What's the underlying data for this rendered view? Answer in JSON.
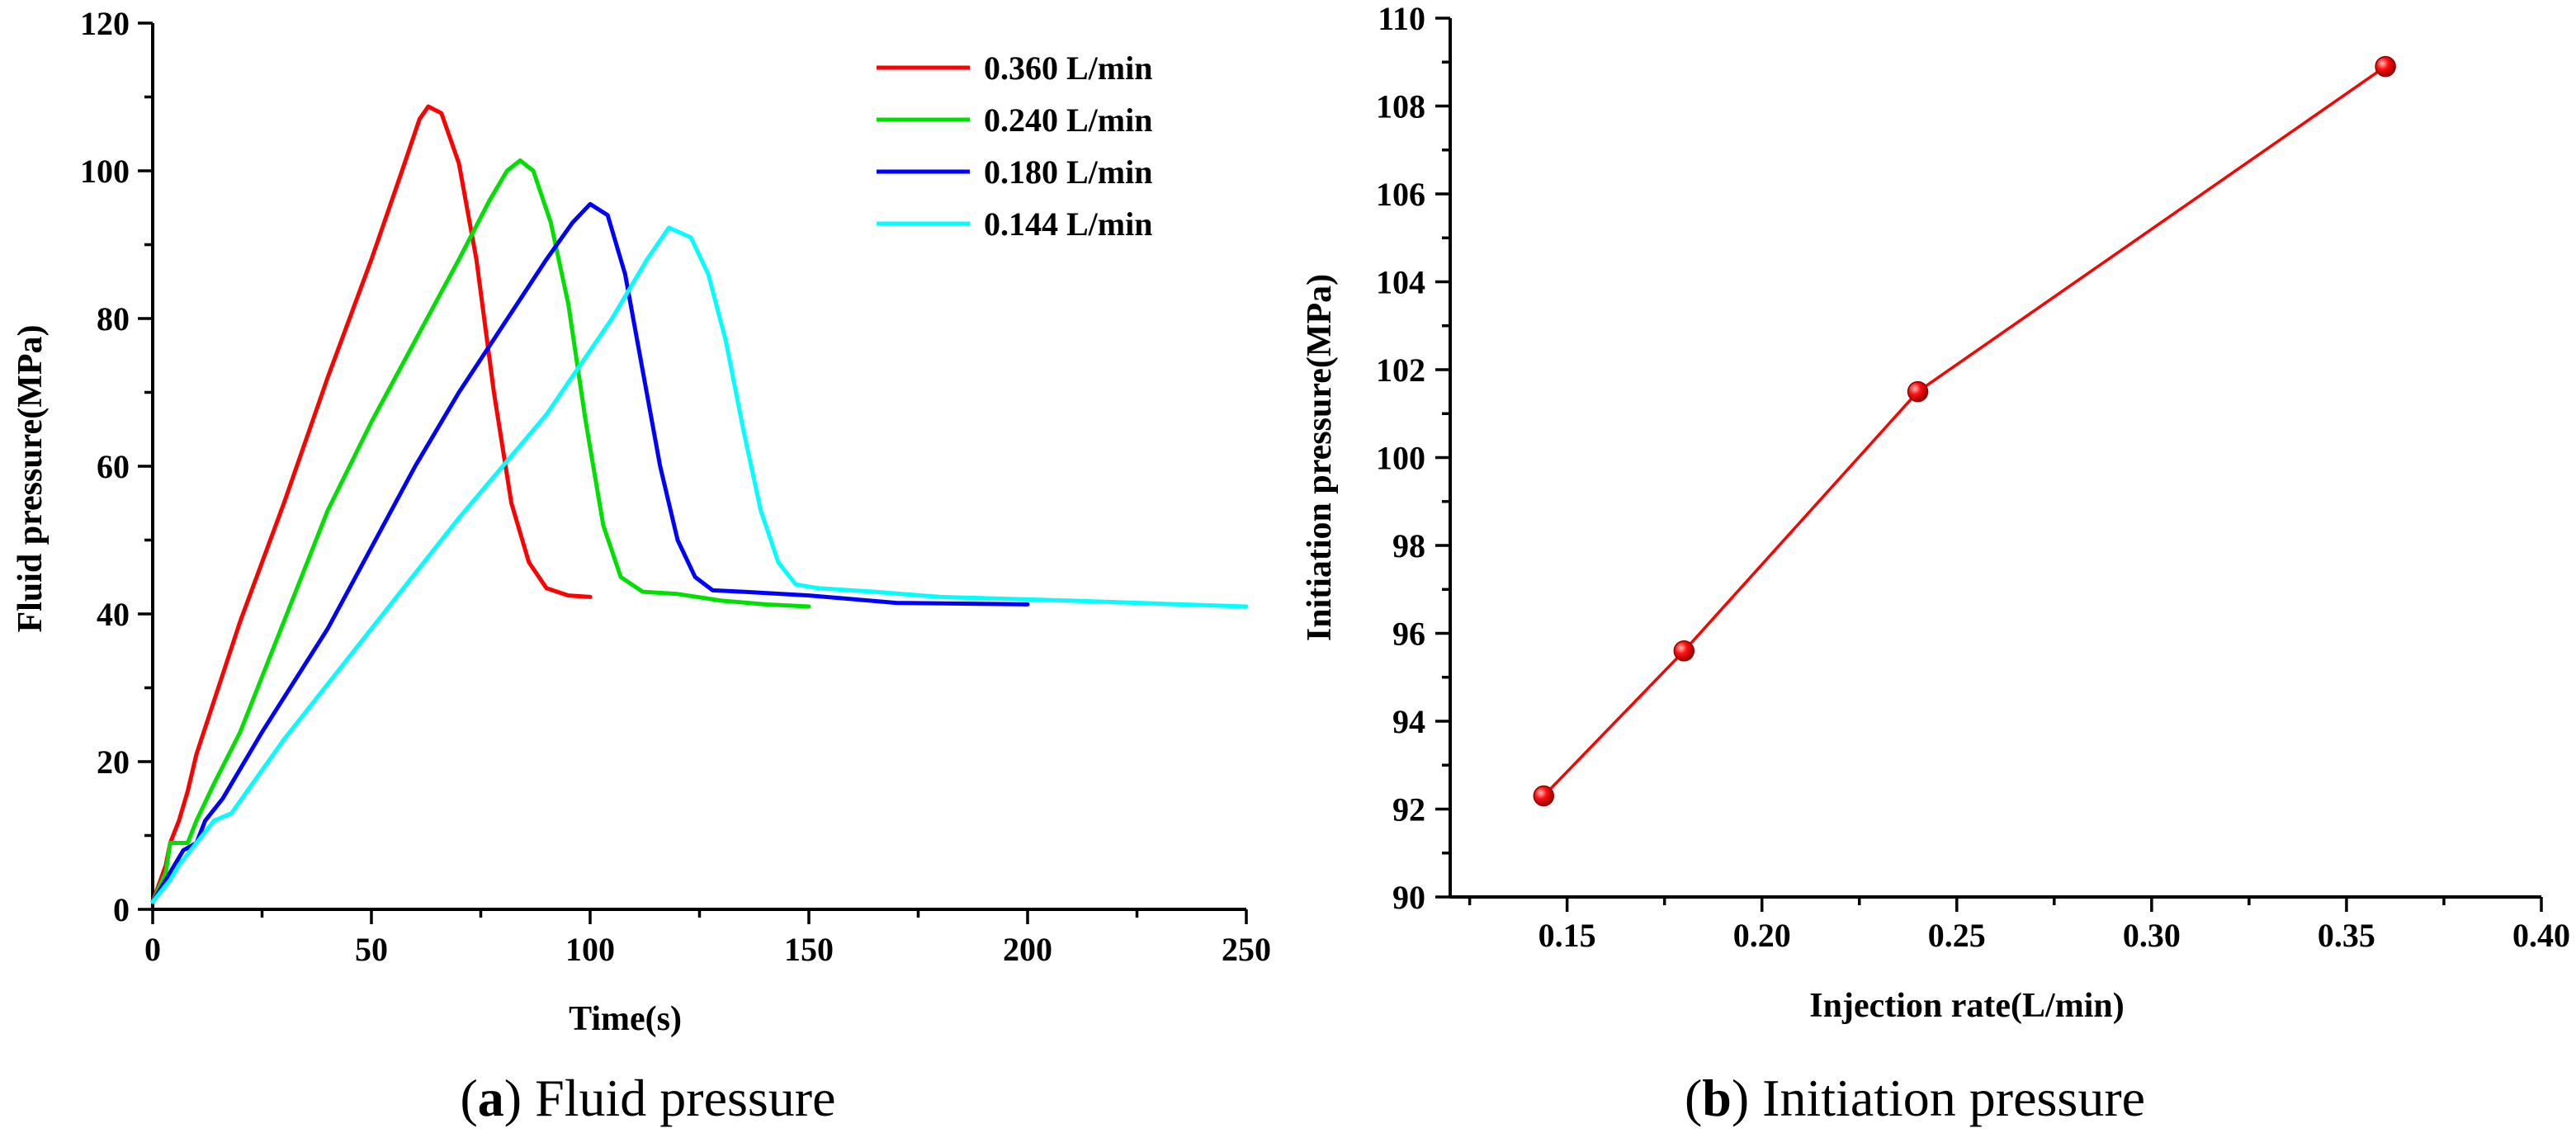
{
  "chart_data": [
    {
      "type": "line",
      "xlabel": "Time(s)",
      "ylabel": "Fluid pressure(MPa)",
      "xlim": [
        0,
        250
      ],
      "ylim": [
        0,
        120
      ],
      "xticks": [
        0,
        50,
        100,
        150,
        200,
        250
      ],
      "yticks": [
        0,
        20,
        40,
        60,
        80,
        100,
        120
      ],
      "legend_position": "top-right",
      "caption_letter": "a",
      "caption_text": " Fluid pressure",
      "series": [
        {
          "name": "0.360 L/min",
          "color": "#ff0000",
          "points": [
            [
              0,
              1
            ],
            [
              3,
              6
            ],
            [
              4,
              9
            ],
            [
              6,
              12
            ],
            [
              8,
              16
            ],
            [
              10,
              21
            ],
            [
              15,
              30
            ],
            [
              20,
              39
            ],
            [
              30,
              55
            ],
            [
              40,
              72
            ],
            [
              50,
              88
            ],
            [
              57,
              100
            ],
            [
              61,
              107
            ],
            [
              63,
              108.7
            ],
            [
              66,
              107.8
            ],
            [
              70,
              101
            ],
            [
              74,
              88
            ],
            [
              78,
              70
            ],
            [
              82,
              55
            ],
            [
              86,
              47
            ],
            [
              90,
              43.5
            ],
            [
              95,
              42.5
            ],
            [
              100,
              42.3
            ]
          ]
        },
        {
          "name": "0.240 L/min",
          "color": "#00e000",
          "points": [
            [
              0,
              1
            ],
            [
              3,
              5
            ],
            [
              4,
              9
            ],
            [
              8,
              9
            ],
            [
              10,
              12
            ],
            [
              14,
              17
            ],
            [
              20,
              24
            ],
            [
              30,
              39
            ],
            [
              40,
              54
            ],
            [
              50,
              66
            ],
            [
              60,
              77
            ],
            [
              70,
              88
            ],
            [
              77,
              96
            ],
            [
              81,
              100
            ],
            [
              84,
              101.4
            ],
            [
              87,
              100
            ],
            [
              91,
              93
            ],
            [
              95,
              82
            ],
            [
              99,
              66
            ],
            [
              103,
              52
            ],
            [
              107,
              45
            ],
            [
              112,
              43
            ],
            [
              120,
              42.7
            ],
            [
              130,
              41.8
            ],
            [
              140,
              41.3
            ],
            [
              150,
              41
            ]
          ]
        },
        {
          "name": "0.180 L/min",
          "color": "#0000ff",
          "points": [
            [
              0,
              1
            ],
            [
              3,
              4
            ],
            [
              5,
              6
            ],
            [
              7,
              8
            ],
            [
              10,
              9
            ],
            [
              12,
              12
            ],
            [
              16,
              15
            ],
            [
              25,
              24
            ],
            [
              40,
              38
            ],
            [
              50,
              49
            ],
            [
              60,
              60
            ],
            [
              70,
              70
            ],
            [
              80,
              79
            ],
            [
              90,
              88
            ],
            [
              96,
              93
            ],
            [
              100,
              95.5
            ],
            [
              104,
              94
            ],
            [
              108,
              86
            ],
            [
              112,
              73
            ],
            [
              116,
              60
            ],
            [
              120,
              50
            ],
            [
              124,
              45
            ],
            [
              128,
              43.2
            ],
            [
              135,
              43
            ],
            [
              150,
              42.5
            ],
            [
              170,
              41.5
            ],
            [
              200,
              41.3
            ]
          ]
        },
        {
          "name": "0.144 L/min",
          "color": "#00ffff",
          "points": [
            [
              0,
              1
            ],
            [
              4,
              4
            ],
            [
              6,
              6
            ],
            [
              10,
              9
            ],
            [
              14,
              12
            ],
            [
              18,
              13
            ],
            [
              30,
              23
            ],
            [
              50,
              38
            ],
            [
              70,
              53
            ],
            [
              90,
              67
            ],
            [
              105,
              80
            ],
            [
              113,
              88
            ],
            [
              118,
              92.3
            ],
            [
              123,
              91
            ],
            [
              127,
              86
            ],
            [
              131,
              77
            ],
            [
              135,
              65
            ],
            [
              139,
              54
            ],
            [
              143,
              47
            ],
            [
              147,
              44
            ],
            [
              152,
              43.5
            ],
            [
              165,
              43
            ],
            [
              180,
              42.3
            ],
            [
              210,
              41.8
            ],
            [
              230,
              41.4
            ],
            [
              250,
              41
            ]
          ]
        }
      ]
    },
    {
      "type": "line",
      "xlabel": "Injection rate(L/min)",
      "ylabel": "Initiation pressure(MPa)",
      "xlim": [
        0.12,
        0.4
      ],
      "ylim": [
        90,
        110
      ],
      "xticks": [
        "0.15",
        "0.20",
        "0.25",
        "0.30",
        "0.35",
        "0.40"
      ],
      "yticks": [
        "90",
        "92",
        "94",
        "96",
        "98",
        "100",
        "102",
        "104",
        "106",
        "108",
        "110"
      ],
      "caption_letter": "b",
      "caption_text": " Initiation pressure",
      "series": [
        {
          "name": "Initiation pressure",
          "color": "#ff0000",
          "x": [
            0.144,
            0.18,
            0.24,
            0.36
          ],
          "y": [
            92.3,
            95.6,
            101.5,
            108.9
          ]
        }
      ]
    }
  ]
}
